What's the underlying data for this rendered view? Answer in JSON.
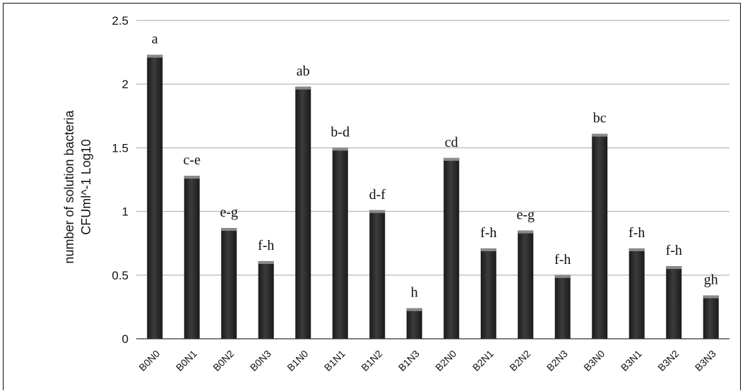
{
  "chart_data": {
    "type": "bar",
    "title": "",
    "xlabel": "",
    "ylabel_lines": [
      "number of solution bacteria",
      "CFUml^-1 Log10"
    ],
    "ylim": [
      0,
      2.5
    ],
    "yticks": [
      "0",
      "0.5",
      "1",
      "1.5",
      "2",
      "2.5"
    ],
    "ytick_values": [
      0,
      0.5,
      1,
      1.5,
      2,
      2.5
    ],
    "grid": true,
    "legend": "none",
    "categories": [
      "B0N0",
      "B0N1",
      "B0N2",
      "B0N3",
      "B1N0",
      "B1N1",
      "B1N2",
      "B1N3",
      "B2N0",
      "B2N1",
      "B2N2",
      "B2N3",
      "B3N0",
      "B3N1",
      "B3N2",
      "B3N3"
    ],
    "values": [
      2.23,
      1.28,
      0.87,
      0.61,
      1.98,
      1.5,
      1.01,
      0.24,
      1.42,
      0.71,
      0.85,
      0.5,
      1.61,
      0.71,
      0.57,
      0.34
    ],
    "annotations": [
      "a",
      "c-e",
      "e-g",
      "f-h",
      "ab",
      "b-d",
      "d-f",
      "h",
      "cd",
      "f-h",
      "e-g",
      "f-h",
      "bc",
      "f-h",
      "f-h",
      "gh"
    ],
    "colors": {
      "bar": "#2e2e2e",
      "bar_highlight": "#8a8a8a",
      "grid": "#bdbdbd",
      "axis": "#555555"
    }
  }
}
